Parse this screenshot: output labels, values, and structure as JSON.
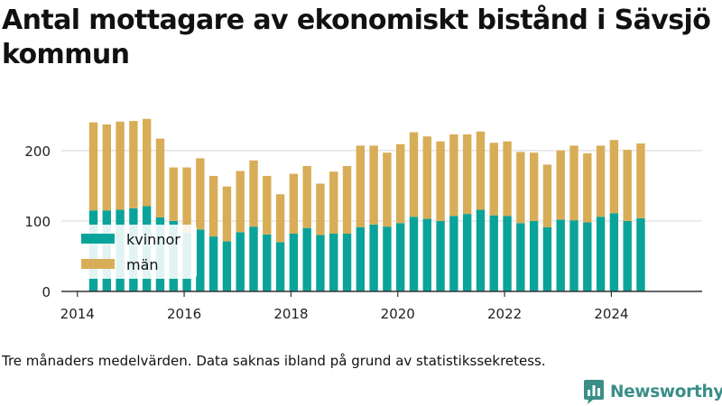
{
  "title": "Antal mottagare av ekonomiskt bistånd i Sävsjö kommun",
  "note": "Tre månaders medelvärden. Data saknas ibland på grund av statistikssekretess.",
  "brand": "Newsworthy",
  "colors": {
    "kvinnor": "#0aa39a",
    "man": "#d8ad57",
    "grid": "#dddddd",
    "axis": "#333333",
    "brand": "#3a8e88"
  },
  "chart_data": {
    "type": "bar",
    "stacked": true,
    "title": "Antal mottagare av ekonomiskt bistånd i Sävsjö kommun",
    "xlabel": "",
    "ylabel": "",
    "ylim": [
      0,
      260
    ],
    "yticks": [
      0,
      100,
      200
    ],
    "xlim": [
      2013.7,
      2025.7
    ],
    "xticks": [
      "2014",
      "2016",
      "2018",
      "2020",
      "2022",
      "2024"
    ],
    "legend": "left-middle",
    "grid": true,
    "series": [
      {
        "name": "kvinnor",
        "x": [
          2014.3,
          2014.55,
          2014.8,
          2015.05,
          2015.3,
          2015.55,
          2015.8,
          2016.05,
          2016.3,
          2016.55,
          2016.8,
          2017.05,
          2017.3,
          2017.55,
          2017.8,
          2018.05,
          2018.3,
          2018.55,
          2018.8,
          2019.05,
          2019.3,
          2019.55,
          2019.8,
          2020.05,
          2020.3,
          2020.55,
          2020.8,
          2021.05,
          2021.3,
          2021.55,
          2021.8,
          2022.05,
          2022.3,
          2022.55,
          2022.8,
          2023.05,
          2023.3,
          2023.55,
          2023.8,
          2024.05,
          2024.3,
          2024.55
        ],
        "values": [
          115,
          115,
          116,
          118,
          121,
          105,
          100,
          83,
          88,
          78,
          71,
          84,
          92,
          81,
          70,
          82,
          90,
          80,
          82,
          82,
          91,
          95,
          92,
          97,
          106,
          103,
          100,
          107,
          110,
          116,
          108,
          107,
          97,
          100,
          91,
          102,
          101,
          98,
          106,
          111,
          100,
          104
        ]
      },
      {
        "name": "män",
        "x": [
          2014.3,
          2014.55,
          2014.8,
          2015.05,
          2015.3,
          2015.55,
          2015.8,
          2016.05,
          2016.3,
          2016.55,
          2016.8,
          2017.05,
          2017.3,
          2017.55,
          2017.8,
          2018.05,
          2018.3,
          2018.55,
          2018.8,
          2019.05,
          2019.3,
          2019.55,
          2019.8,
          2020.05,
          2020.3,
          2020.55,
          2020.8,
          2021.05,
          2021.3,
          2021.55,
          2021.8,
          2022.05,
          2022.3,
          2022.55,
          2022.8,
          2023.05,
          2023.3,
          2023.55,
          2023.8,
          2024.05,
          2024.3,
          2024.55
        ],
        "values": [
          125,
          122,
          125,
          124,
          124,
          112,
          76,
          93,
          101,
          86,
          78,
          87,
          94,
          83,
          68,
          85,
          88,
          73,
          88,
          96,
          116,
          112,
          105,
          112,
          120,
          117,
          113,
          116,
          113,
          111,
          103,
          106,
          101,
          97,
          89,
          98,
          106,
          98,
          101,
          104,
          101,
          106
        ]
      }
    ]
  }
}
